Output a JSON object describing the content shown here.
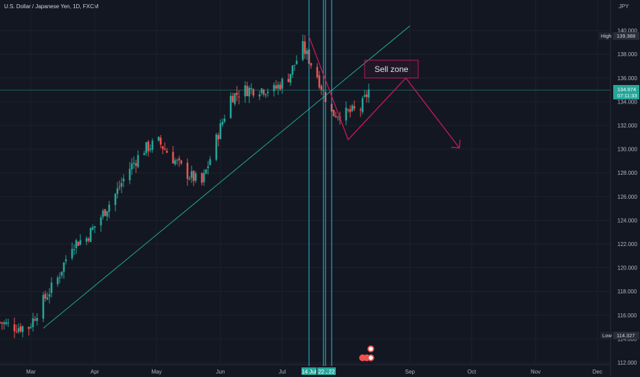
{
  "header": {
    "symbol": "U.S. Dollar / Japanese Yen, 1D, FXCM"
  },
  "price_scale": {
    "unit": "JPY",
    "ticks": [
      "140.000",
      "138.000",
      "136.000",
      "134.000",
      "132.000",
      "130.000",
      "128.000",
      "126.000",
      "124.000",
      "122.000",
      "120.000",
      "118.000",
      "116.000",
      "114.000",
      "112.000"
    ]
  },
  "time_scale": {
    "labels": [
      "Mar",
      "Apr",
      "May",
      "Jun",
      "Jul",
      "Sep",
      "Oct",
      "Nov",
      "Dec"
    ],
    "highlighted": [
      "14 Jul",
      "22 Jul",
      "22"
    ]
  },
  "badges": {
    "high_label": "High",
    "high_value": "139.388",
    "low_label": "Low",
    "low_value": "114.327",
    "last_price": "134.974",
    "countdown": "07:11:33"
  },
  "annotation": {
    "sell_zone": "Sell zone"
  },
  "colors": {
    "background": "#131722",
    "up": "#26a69a",
    "down": "#ef5350",
    "trendline": "#22ab94",
    "projection": "#c2185b",
    "vline": "#26c6da",
    "axis_text": "#b2b5be"
  },
  "chart_data": {
    "type": "candlestick",
    "title": "U.S. Dollar / Japanese Yen, 1D, FXCM",
    "ylim": [
      111.7,
      141.6
    ],
    "yunit": "JPY",
    "close_series": [
      [
        "2022-02-14",
        115.4
      ],
      [
        "2022-02-21",
        115.0
      ],
      [
        "2022-02-28",
        115.0
      ],
      [
        "2022-03-07",
        117.2
      ],
      [
        "2022-03-14",
        119.1
      ],
      [
        "2022-03-21",
        122.0
      ],
      [
        "2022-03-28",
        122.5
      ],
      [
        "2022-04-04",
        124.3
      ],
      [
        "2022-04-11",
        126.2
      ],
      [
        "2022-04-18",
        128.4
      ],
      [
        "2022-04-25",
        130.0
      ],
      [
        "2022-05-02",
        130.6
      ],
      [
        "2022-05-09",
        129.2
      ],
      [
        "2022-05-16",
        127.9
      ],
      [
        "2022-05-23",
        127.1
      ],
      [
        "2022-05-30",
        130.8
      ],
      [
        "2022-06-06",
        134.4
      ],
      [
        "2022-06-13",
        135.0
      ],
      [
        "2022-06-20",
        135.1
      ],
      [
        "2022-06-27",
        135.0
      ],
      [
        "2022-07-04",
        136.1
      ],
      [
        "2022-07-11",
        138.6
      ],
      [
        "2022-07-18",
        136.2
      ],
      [
        "2022-07-25",
        133.0
      ],
      [
        "2022-08-01",
        133.0
      ],
      [
        "2022-08-08",
        133.4
      ],
      [
        "2022-08-12",
        134.97
      ]
    ],
    "high": 139.388,
    "low": 114.327,
    "last": 134.974,
    "trendline": [
      [
        "2022-03-07",
        114.9
      ],
      [
        "2022-09-01",
        140.4
      ]
    ],
    "sell_zone": {
      "x": [
        "2022-08-10",
        "2022-09-05"
      ],
      "y": [
        136.0,
        137.5
      ]
    },
    "projection": [
      [
        "2022-07-14",
        139.5
      ],
      [
        "2022-08-02",
        130.8
      ],
      [
        "2022-08-30",
        136.0
      ],
      [
        "2022-09-25",
        130.1
      ]
    ],
    "vertical_lines": [
      "2022-07-14",
      "2022-07-21",
      "2022-07-22",
      "2022-07-25"
    ]
  }
}
